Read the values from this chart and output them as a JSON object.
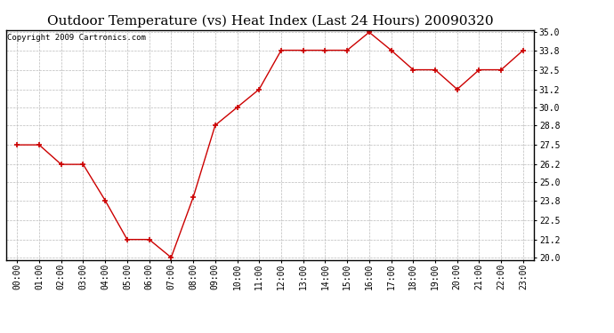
{
  "title": "Outdoor Temperature (vs) Heat Index (Last 24 Hours) 20090320",
  "copyright": "Copyright 2009 Cartronics.com",
  "x_labels": [
    "00:00",
    "01:00",
    "02:00",
    "03:00",
    "04:00",
    "05:00",
    "06:00",
    "07:00",
    "08:00",
    "09:00",
    "10:00",
    "11:00",
    "12:00",
    "13:00",
    "14:00",
    "15:00",
    "16:00",
    "17:00",
    "18:00",
    "19:00",
    "20:00",
    "21:00",
    "22:00",
    "23:00"
  ],
  "y_values": [
    27.5,
    27.5,
    26.2,
    26.2,
    23.8,
    21.2,
    21.2,
    20.0,
    24.0,
    28.8,
    30.0,
    31.2,
    33.8,
    33.8,
    33.8,
    33.8,
    35.0,
    33.8,
    32.5,
    32.5,
    31.2,
    32.5,
    32.5,
    33.8
  ],
  "y_ticks": [
    20.0,
    21.2,
    22.5,
    23.8,
    25.0,
    26.2,
    27.5,
    28.8,
    30.0,
    31.2,
    32.5,
    33.8,
    35.0
  ],
  "ylim": [
    19.85,
    35.15
  ],
  "line_color": "#cc0000",
  "marker_color": "#cc0000",
  "bg_color": "#ffffff",
  "grid_color": "#bbbbbb",
  "title_fontsize": 11,
  "copyright_fontsize": 6.5,
  "tick_fontsize": 7,
  "ytick_fontsize": 7
}
